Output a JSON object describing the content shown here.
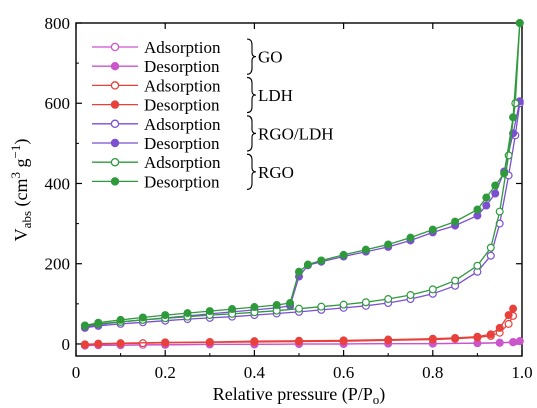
{
  "chart_data": {
    "type": "line",
    "xlabel": "Relative pressure (P/P",
    "xlabel_sub": "o",
    "xlabel_tail": ")",
    "ylabel": "V",
    "ylabel_sub": "abs",
    "ylabel_units": " (cm",
    "ylabel_sup1": "3",
    "ylabel_units2": " g",
    "ylabel_sup2": "−1",
    "ylabel_tail": ")",
    "xlim": [
      0,
      1
    ],
    "ylim": [
      -30,
      800
    ],
    "x_ticks": [
      0,
      0.2,
      0.4,
      0.6,
      0.8,
      1.0
    ],
    "x_tick_labels": [
      "0",
      "0.2",
      "0.4",
      "0.6",
      "0.8",
      "1.0"
    ],
    "y_ticks": [
      0,
      200,
      400,
      600,
      800
    ],
    "y_tick_labels": [
      "0",
      "200",
      "400",
      "600",
      "800"
    ],
    "grid": false,
    "legend_position": "top-left",
    "legend_groups": [
      {
        "label": "GO",
        "entries": [
          "Adsorption",
          "Desorption"
        ]
      },
      {
        "label": "LDH",
        "entries": [
          "Adsorption",
          "Desorption"
        ]
      },
      {
        "label": "RGO/LDH",
        "entries": [
          "Adsorption",
          "Desorption"
        ]
      },
      {
        "label": "RGO",
        "entries": [
          "Adsorption",
          "Desorption"
        ]
      }
    ],
    "series": [
      {
        "name": "Adsorption",
        "group": "GO",
        "marker": "open",
        "color": "#cc55cc",
        "points": [
          [
            0.02,
            -4
          ],
          [
            0.05,
            -3
          ],
          [
            0.1,
            -3
          ],
          [
            0.15,
            -2
          ],
          [
            0.2,
            -2
          ],
          [
            0.3,
            -1
          ],
          [
            0.4,
            -1
          ],
          [
            0.5,
            0
          ],
          [
            0.6,
            0
          ],
          [
            0.7,
            1
          ],
          [
            0.8,
            1
          ],
          [
            0.9,
            2
          ],
          [
            0.95,
            3
          ],
          [
            0.98,
            4
          ],
          [
            0.995,
            7
          ]
        ]
      },
      {
        "name": "Desorption",
        "group": "GO",
        "marker": "filled",
        "color": "#cc55cc",
        "points": [
          [
            0.995,
            7
          ],
          [
            0.98,
            5
          ],
          [
            0.95,
            3
          ],
          [
            0.9,
            2
          ],
          [
            0.8,
            1
          ],
          [
            0.7,
            1
          ],
          [
            0.6,
            0
          ],
          [
            0.5,
            0
          ],
          [
            0.4,
            -1
          ],
          [
            0.3,
            -1
          ],
          [
            0.2,
            -2
          ],
          [
            0.1,
            -3
          ],
          [
            0.05,
            -3
          ],
          [
            0.02,
            -4
          ]
        ]
      },
      {
        "name": "Adsorption",
        "group": "LDH",
        "marker": "open",
        "color": "#e8403a",
        "points": [
          [
            0.02,
            -2
          ],
          [
            0.05,
            0
          ],
          [
            0.1,
            1
          ],
          [
            0.15,
            2
          ],
          [
            0.2,
            3
          ],
          [
            0.3,
            4
          ],
          [
            0.4,
            5
          ],
          [
            0.5,
            6
          ],
          [
            0.6,
            7
          ],
          [
            0.7,
            9
          ],
          [
            0.8,
            11
          ],
          [
            0.85,
            13
          ],
          [
            0.9,
            16
          ],
          [
            0.93,
            20
          ],
          [
            0.95,
            28
          ],
          [
            0.97,
            50
          ],
          [
            0.98,
            70
          ]
        ]
      },
      {
        "name": "Desorption",
        "group": "LDH",
        "marker": "filled",
        "color": "#e8403a",
        "points": [
          [
            0.98,
            88
          ],
          [
            0.97,
            72
          ],
          [
            0.95,
            40
          ],
          [
            0.93,
            24
          ],
          [
            0.9,
            18
          ],
          [
            0.85,
            15
          ],
          [
            0.8,
            13
          ],
          [
            0.7,
            11
          ],
          [
            0.6,
            9
          ],
          [
            0.5,
            8
          ],
          [
            0.4,
            7
          ],
          [
            0.3,
            5
          ],
          [
            0.2,
            4
          ],
          [
            0.1,
            2
          ],
          [
            0.05,
            1
          ],
          [
            0.02,
            -1
          ]
        ]
      },
      {
        "name": "Adsorption",
        "group": "RGO/LDH",
        "marker": "open",
        "color": "#7b4fd0",
        "points": [
          [
            0.02,
            40
          ],
          [
            0.05,
            45
          ],
          [
            0.1,
            50
          ],
          [
            0.15,
            54
          ],
          [
            0.2,
            58
          ],
          [
            0.25,
            62
          ],
          [
            0.3,
            65
          ],
          [
            0.35,
            68
          ],
          [
            0.4,
            72
          ],
          [
            0.45,
            76
          ],
          [
            0.5,
            80
          ],
          [
            0.55,
            85
          ],
          [
            0.6,
            90
          ],
          [
            0.65,
            95
          ],
          [
            0.7,
            102
          ],
          [
            0.75,
            112
          ],
          [
            0.8,
            125
          ],
          [
            0.85,
            145
          ],
          [
            0.9,
            180
          ],
          [
            0.93,
            220
          ],
          [
            0.95,
            300
          ],
          [
            0.97,
            420
          ],
          [
            0.985,
            520
          ],
          [
            0.995,
            600
          ]
        ]
      },
      {
        "name": "Desorption",
        "group": "RGO/LDH",
        "marker": "filled",
        "color": "#7b4fd0",
        "points": [
          [
            0.995,
            605
          ],
          [
            0.98,
            525
          ],
          [
            0.96,
            430
          ],
          [
            0.94,
            375
          ],
          [
            0.92,
            345
          ],
          [
            0.9,
            320
          ],
          [
            0.85,
            295
          ],
          [
            0.8,
            278
          ],
          [
            0.75,
            258
          ],
          [
            0.7,
            242
          ],
          [
            0.65,
            230
          ],
          [
            0.6,
            218
          ],
          [
            0.55,
            205
          ],
          [
            0.52,
            196
          ],
          [
            0.5,
            168
          ],
          [
            0.48,
            95
          ],
          [
            0.45,
            90
          ],
          [
            0.4,
            85
          ],
          [
            0.35,
            80
          ],
          [
            0.3,
            75
          ],
          [
            0.25,
            70
          ],
          [
            0.2,
            65
          ],
          [
            0.15,
            60
          ],
          [
            0.1,
            55
          ],
          [
            0.05,
            48
          ],
          [
            0.02,
            42
          ]
        ]
      },
      {
        "name": "Adsorption",
        "group": "RGO",
        "marker": "open",
        "color": "#2e9a3c",
        "points": [
          [
            0.02,
            45
          ],
          [
            0.05,
            50
          ],
          [
            0.1,
            55
          ],
          [
            0.15,
            60
          ],
          [
            0.2,
            64
          ],
          [
            0.25,
            68
          ],
          [
            0.3,
            72
          ],
          [
            0.35,
            75
          ],
          [
            0.4,
            79
          ],
          [
            0.45,
            83
          ],
          [
            0.5,
            88
          ],
          [
            0.55,
            93
          ],
          [
            0.6,
            98
          ],
          [
            0.65,
            104
          ],
          [
            0.7,
            112
          ],
          [
            0.75,
            122
          ],
          [
            0.8,
            136
          ],
          [
            0.85,
            158
          ],
          [
            0.9,
            195
          ],
          [
            0.93,
            240
          ],
          [
            0.95,
            330
          ],
          [
            0.97,
            470
          ],
          [
            0.985,
            600
          ],
          [
            0.995,
            800
          ]
        ]
      },
      {
        "name": "Desorption",
        "group": "RGO",
        "marker": "filled",
        "color": "#2e9a3c",
        "points": [
          [
            0.995,
            800
          ],
          [
            0.98,
            565
          ],
          [
            0.96,
            425
          ],
          [
            0.94,
            395
          ],
          [
            0.92,
            365
          ],
          [
            0.9,
            335
          ],
          [
            0.85,
            305
          ],
          [
            0.8,
            285
          ],
          [
            0.75,
            265
          ],
          [
            0.7,
            248
          ],
          [
            0.65,
            235
          ],
          [
            0.6,
            222
          ],
          [
            0.55,
            208
          ],
          [
            0.52,
            198
          ],
          [
            0.5,
            180
          ],
          [
            0.48,
            102
          ],
          [
            0.45,
            97
          ],
          [
            0.4,
            92
          ],
          [
            0.35,
            87
          ],
          [
            0.3,
            82
          ],
          [
            0.25,
            77
          ],
          [
            0.2,
            72
          ],
          [
            0.15,
            66
          ],
          [
            0.1,
            60
          ],
          [
            0.05,
            53
          ],
          [
            0.02,
            46
          ]
        ]
      }
    ]
  }
}
